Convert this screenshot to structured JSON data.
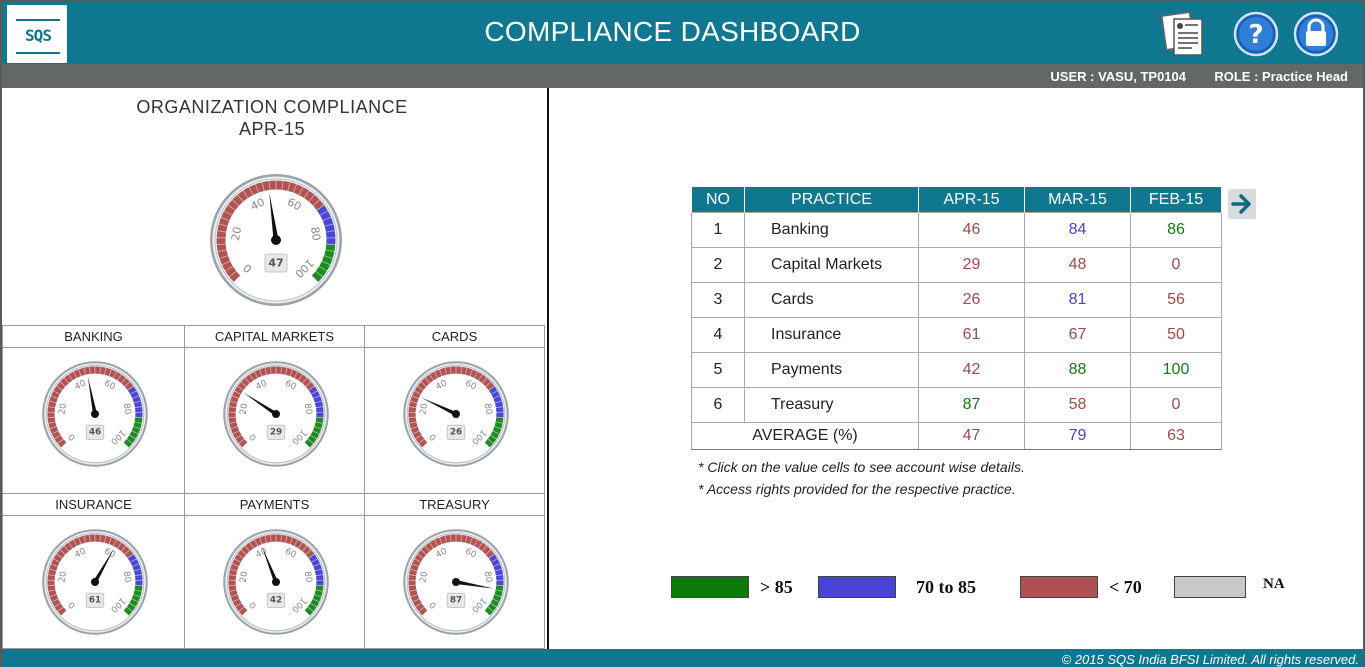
{
  "header": {
    "logo_text": "SQS",
    "title": "COMPLIANCE DASHBOARD",
    "icons": [
      "report-icon",
      "help-icon",
      "lock-icon"
    ]
  },
  "userbar": {
    "user": "USER : VASU, TP0104",
    "role": "ROLE : Practice Head"
  },
  "organization": {
    "title": "ORGANIZATION COMPLIANCE",
    "period": "APR-15",
    "value": 47
  },
  "gauge_scale": {
    "ticks": [
      "0",
      "20",
      "40",
      "60",
      "80",
      "100"
    ],
    "bands": [
      {
        "from": 0,
        "to": 70,
        "color": "#b05353"
      },
      {
        "from": 70,
        "to": 85,
        "color": "#4b47d3"
      },
      {
        "from": 85,
        "to": 100,
        "color": "#1f8a1f"
      }
    ]
  },
  "practice_gauges": [
    {
      "name": "BANKING",
      "value": 46
    },
    {
      "name": "CAPITAL MARKETS",
      "value": 29
    },
    {
      "name": "CARDS",
      "value": 26
    },
    {
      "name": "INSURANCE",
      "value": 61
    },
    {
      "name": "PAYMENTS",
      "value": 42
    },
    {
      "name": "TREASURY",
      "value": 87
    }
  ],
  "table": {
    "headers": [
      "NO",
      "PRACTICE",
      "APR-15",
      "MAR-15",
      "FEB-15"
    ],
    "rows": [
      {
        "no": "1",
        "practice": "Banking",
        "values": [
          "46",
          "84",
          "86"
        ],
        "colors": [
          "red",
          "blue",
          "green"
        ]
      },
      {
        "no": "2",
        "practice": "Capital Markets",
        "values": [
          "29",
          "48",
          "0"
        ],
        "colors": [
          "red",
          "red",
          "red"
        ]
      },
      {
        "no": "3",
        "practice": "Cards",
        "values": [
          "26",
          "81",
          "56"
        ],
        "colors": [
          "red",
          "blue",
          "red"
        ]
      },
      {
        "no": "4",
        "practice": "Insurance",
        "values": [
          "61",
          "67",
          "50"
        ],
        "colors": [
          "red",
          "red",
          "red"
        ]
      },
      {
        "no": "5",
        "practice": "Payments",
        "values": [
          "42",
          "88",
          "100"
        ],
        "colors": [
          "red",
          "green",
          "green"
        ]
      },
      {
        "no": "6",
        "practice": "Treasury",
        "values": [
          "87",
          "58",
          "0"
        ],
        "colors": [
          "green",
          "red",
          "red"
        ]
      }
    ],
    "average": {
      "label": "AVERAGE (%)",
      "values": [
        "47",
        "79",
        "63"
      ],
      "colors": [
        "red",
        "blue",
        "red"
      ]
    }
  },
  "notes": [
    "* Click on the value cells to see account wise details.",
    "* Access rights provided for the respective practice."
  ],
  "legend": [
    {
      "label": "> 85",
      "color": "#0b7a0b"
    },
    {
      "label": "70 to 85",
      "color": "#4a44d6"
    },
    {
      "label": "< 70",
      "color": "#b05151"
    },
    {
      "label": "NA",
      "color": "#c8c8c8"
    }
  ],
  "footer": {
    "copyright": "© 2015 SQS India BFSI Limited. All rights reserved."
  }
}
